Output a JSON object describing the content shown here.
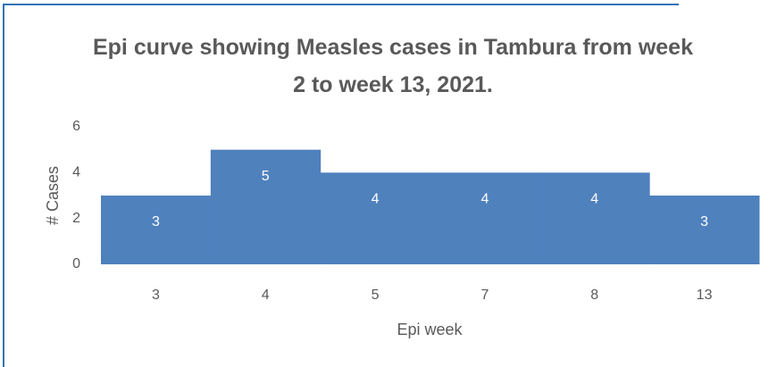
{
  "chart_data": {
    "type": "bar",
    "title": "Epi curve showing Measles cases in Tambura from week 2 to week 13, 2021.",
    "x_label": "Epi week",
    "y_label": "# Cases",
    "categories": [
      "3",
      "4",
      "5",
      "7",
      "8",
      "13"
    ],
    "values": [
      3,
      5,
      4,
      4,
      4,
      3
    ],
    "color": "#4f81bd",
    "ylim": [
      0,
      6
    ],
    "yticks": [
      0,
      2,
      4,
      6
    ],
    "grid": false
  }
}
